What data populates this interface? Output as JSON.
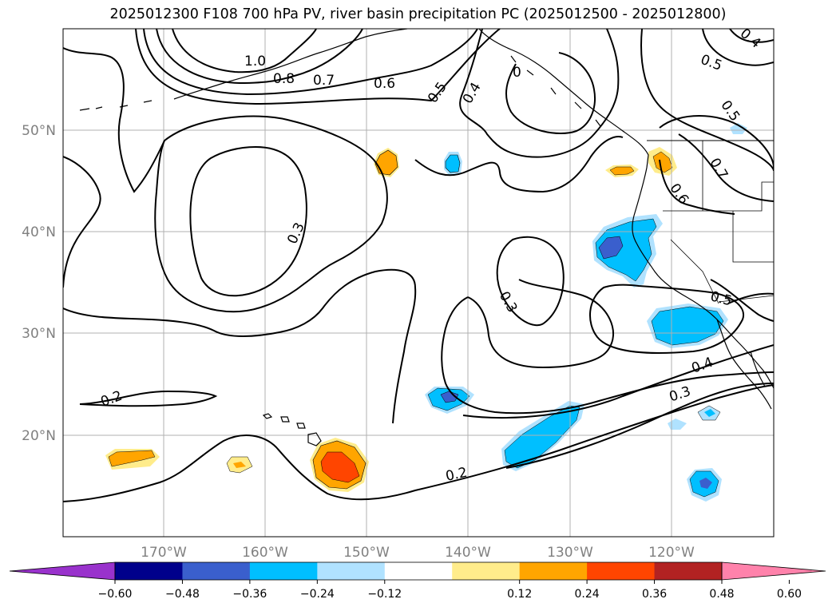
{
  "title": "2025012300 F108 700 hPa PV, river basin precipitation PC (2025012500 - 2025012800)",
  "map": {
    "lon_ticks": [
      "170°W",
      "160°W",
      "150°W",
      "140°W",
      "130°W",
      "120°W"
    ],
    "lat_ticks": [
      "50°N",
      "40°N",
      "30°N",
      "20°N"
    ],
    "gridlines": true,
    "coastline_color": "#000000"
  },
  "contours": {
    "field": "700 hPa PV",
    "labels": [
      "1.0",
      "0.8",
      "0.7",
      "0.6",
      "0.5",
      "0.4",
      "0.3",
      "0.3",
      "0.2",
      "0.2",
      "0.3",
      "0.4",
      "0.5",
      "0.5",
      "0.6",
      "0.7",
      "0.5",
      "0.4",
      "0"
    ]
  },
  "colorbar": {
    "ticks": [
      "−0.60",
      "−0.48",
      "−0.36",
      "−0.24",
      "−0.12",
      "0.12",
      "0.24",
      "0.36",
      "0.48",
      "0.60"
    ],
    "colors": [
      "#9932cc",
      "#00008b",
      "#3a5fcd",
      "#00bfff",
      "#b0e2ff",
      "#ffffff",
      "#ffec8b",
      "#ffa500",
      "#ff4500",
      "#b22222",
      "#ff82ab"
    ],
    "extend": "both"
  }
}
